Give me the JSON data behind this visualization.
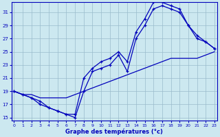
{
  "xlabel": "Graphe des températures (°c)",
  "bg_color": "#cce8f0",
  "line_color": "#0000bb",
  "grid_color": "#99bbcc",
  "hours": [
    0,
    1,
    2,
    3,
    4,
    5,
    6,
    7,
    8,
    9,
    10,
    11,
    12,
    13,
    14,
    15,
    16,
    17,
    18,
    19,
    20,
    21,
    22,
    23
  ],
  "curve1": [
    19,
    18.5,
    18,
    17.5,
    16.5,
    16,
    15.5,
    15.5,
    21,
    22.5,
    23.5,
    24,
    25,
    23.5,
    28,
    30,
    32.5,
    32.5,
    32,
    31.5,
    29,
    27.5,
    26.5,
    25.5
  ],
  "curve2": [
    19,
    18.5,
    18,
    17,
    16.5,
    16,
    15.5,
    15,
    19,
    22,
    22.5,
    23,
    24.5,
    22,
    27,
    29,
    31.5,
    32,
    31.5,
    31,
    29,
    27,
    26.5,
    25.5
  ],
  "curve_ref": [
    19,
    18.5,
    18.5,
    18,
    18,
    18,
    18,
    18.5,
    19,
    19.5,
    20,
    20.5,
    21,
    21.5,
    22,
    22.5,
    23,
    23.5,
    24,
    24,
    24,
    24,
    24.5,
    25
  ],
  "ylim": [
    14.5,
    32.5
  ],
  "yticks": [
    15,
    17,
    19,
    21,
    23,
    25,
    27,
    29,
    31
  ],
  "xlim": [
    -0.3,
    23.3
  ],
  "xticks": [
    0,
    1,
    2,
    3,
    4,
    5,
    6,
    7,
    8,
    9,
    10,
    11,
    12,
    13,
    14,
    15,
    16,
    17,
    18,
    19,
    20,
    21,
    22,
    23
  ]
}
